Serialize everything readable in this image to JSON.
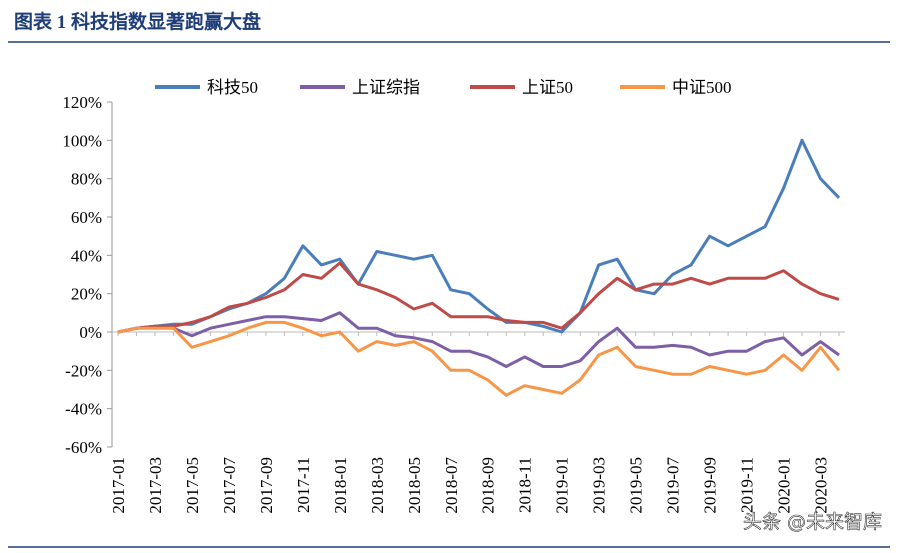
{
  "chart_data": {
    "type": "line",
    "title": "图表 1 科技指数显著跑赢大盘",
    "watermark": "头条 @未来智库",
    "x": [
      "2017-01",
      null,
      "2017-03",
      null,
      "2017-05",
      null,
      "2017-07",
      null,
      "2017-09",
      null,
      "2017-11",
      null,
      "2018-01",
      null,
      "2018-03",
      null,
      "2018-05",
      null,
      "2018-07",
      null,
      "2018-09",
      null,
      "2018-11",
      null,
      "2019-01",
      null,
      "2019-03",
      null,
      "2019-05",
      null,
      "2019-07",
      null,
      "2019-09",
      null,
      "2019-11",
      null,
      "2020-01",
      null,
      "2020-03",
      null
    ],
    "ylim": [
      -60,
      120
    ],
    "yticks": [
      {
        "value": -60,
        "label": "-60%"
      },
      {
        "value": -40,
        "label": "-40%"
      },
      {
        "value": -20,
        "label": "-20%"
      },
      {
        "value": 0,
        "label": "0%"
      },
      {
        "value": 20,
        "label": "20%"
      },
      {
        "value": 40,
        "label": "40%"
      },
      {
        "value": 60,
        "label": "60%"
      },
      {
        "value": 80,
        "label": "80%"
      },
      {
        "value": 100,
        "label": "100%"
      },
      {
        "value": 120,
        "label": "120%"
      }
    ],
    "legend": "top",
    "series": [
      {
        "name": "科技50",
        "color": "#4a7ebb",
        "values": [
          0,
          2,
          3,
          4,
          4,
          8,
          12,
          15,
          20,
          28,
          45,
          35,
          38,
          25,
          42,
          40,
          38,
          40,
          22,
          20,
          12,
          5,
          5,
          3,
          0,
          10,
          35,
          38,
          22,
          20,
          30,
          35,
          50,
          45,
          50,
          55,
          75,
          100,
          80,
          70
        ]
      },
      {
        "name": "上证综指",
        "color": "#7d5fa5",
        "values": [
          0,
          2,
          3,
          2,
          -2,
          2,
          4,
          6,
          8,
          8,
          7,
          6,
          10,
          2,
          2,
          -2,
          -3,
          -5,
          -10,
          -10,
          -13,
          -18,
          -13,
          -18,
          -18,
          -15,
          -5,
          2,
          -8,
          -8,
          -7,
          -8,
          -12,
          -10,
          -10,
          -5,
          -3,
          -12,
          -5,
          -12
        ]
      },
      {
        "name": "上证50",
        "color": "#be4b48",
        "values": [
          0,
          2,
          3,
          3,
          5,
          8,
          13,
          15,
          18,
          22,
          30,
          28,
          36,
          25,
          22,
          18,
          12,
          15,
          8,
          8,
          8,
          6,
          5,
          5,
          2,
          10,
          20,
          28,
          22,
          25,
          25,
          28,
          25,
          28,
          28,
          28,
          32,
          25,
          20,
          17
        ]
      },
      {
        "name": "中证500",
        "color": "#f79646",
        "values": [
          0,
          2,
          2,
          2,
          -8,
          -5,
          -2,
          2,
          5,
          5,
          2,
          -2,
          0,
          -10,
          -5,
          -7,
          -5,
          -10,
          -20,
          -20,
          -25,
          -33,
          -28,
          -30,
          -32,
          -25,
          -12,
          -8,
          -18,
          -20,
          -22,
          -22,
          -18,
          -20,
          -22,
          -20,
          -12,
          -20,
          -8,
          -20
        ]
      }
    ]
  }
}
